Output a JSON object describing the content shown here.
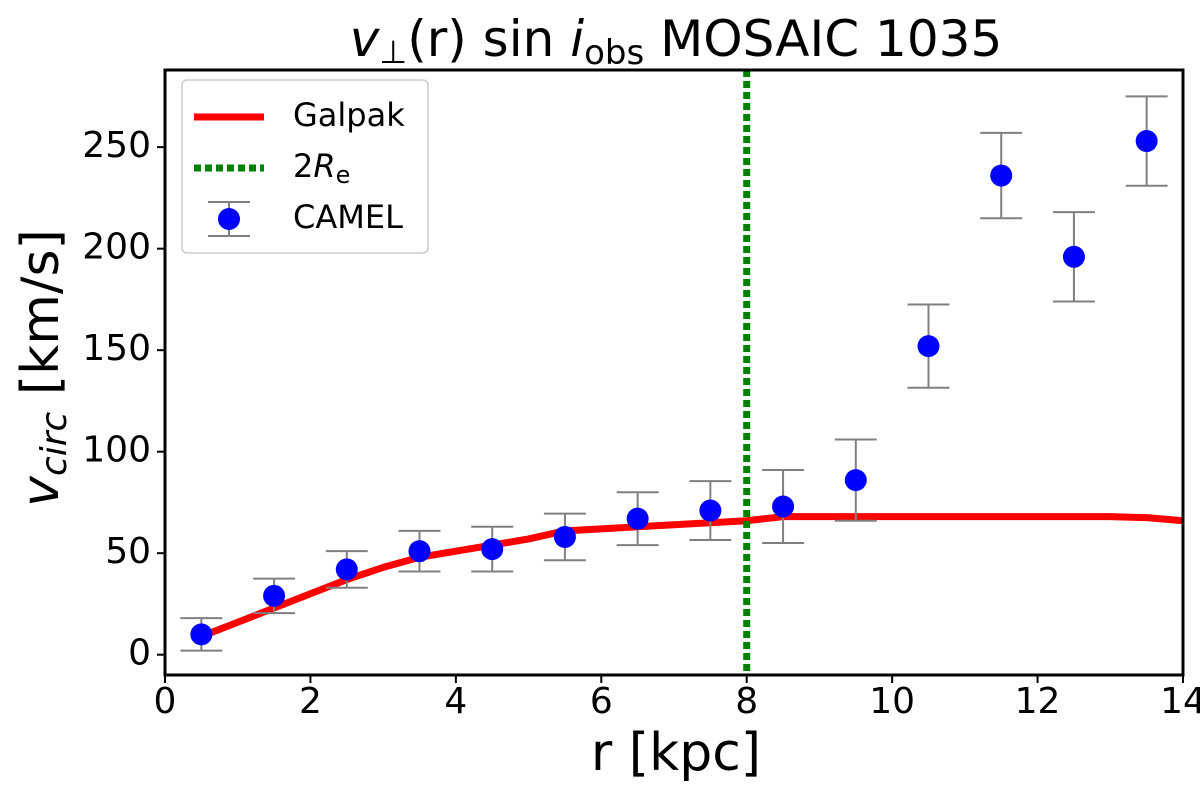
{
  "chart_data": {
    "type": "line",
    "title": [
      "v",
      "⊥",
      "(r) sin ",
      "i",
      "obs",
      " MOSAIC 1035"
    ],
    "xlabel": "r [kpc]",
    "ylabel": [
      "v",
      "circ",
      " [km/s]"
    ],
    "xlim": [
      0,
      14
    ],
    "ylim": [
      -10,
      288
    ],
    "xticks": [
      0,
      2,
      4,
      6,
      8,
      10,
      12,
      14
    ],
    "yticks": [
      0,
      50,
      100,
      150,
      200,
      250
    ],
    "legend": "upper left",
    "series": [
      {
        "type": "line",
        "name": "Galpak",
        "color": "#ff0000",
        "x": [
          0.5,
          1,
          1.5,
          2,
          2.5,
          3,
          3.5,
          4,
          4.5,
          5,
          5.5,
          6,
          6.5,
          7,
          7.5,
          8,
          8.5,
          9.5,
          10.5,
          12,
          13,
          13.5,
          14
        ],
        "values": [
          9,
          16,
          23,
          30,
          37,
          43,
          48,
          51,
          54,
          57,
          61,
          62,
          63,
          64,
          65,
          66,
          68,
          68,
          68,
          68,
          68,
          67.5,
          66
        ]
      },
      {
        "type": "vline",
        "name": [
          "2",
          "R",
          "e"
        ],
        "color": "#008000",
        "x": 8
      },
      {
        "type": "errorbar",
        "name": "CAMEL",
        "color": "#0000ff",
        "error_color": "#808080",
        "x": [
          0.5,
          1.5,
          2.5,
          3.5,
          4.5,
          5.5,
          6.5,
          7.5,
          8.5,
          9.5,
          10.5,
          11.5,
          12.5,
          13.5
        ],
        "values": [
          10,
          29,
          42,
          51,
          52,
          58,
          67,
          71,
          73,
          86,
          152,
          236,
          196,
          253
        ],
        "errors": [
          8,
          8.5,
          9,
          10,
          11,
          11.5,
          13,
          14.5,
          18,
          20,
          20.5,
          21,
          22,
          22
        ]
      }
    ]
  }
}
